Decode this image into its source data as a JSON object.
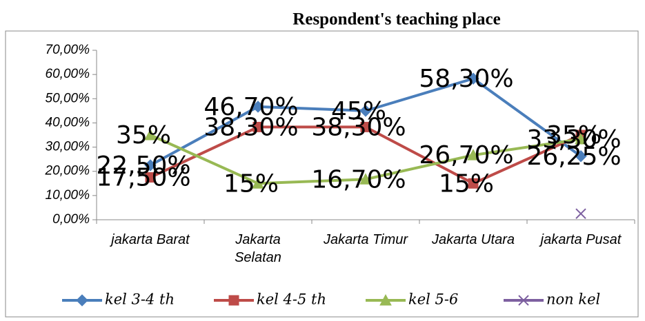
{
  "chart_data": {
    "type": "line",
    "title": "Respondent's teaching place",
    "categories": [
      "jakarta Barat",
      "Jakarta Selatan",
      "Jakarta Timur",
      "Jakarta Utara",
      "jakarta Pusat"
    ],
    "series": [
      {
        "name": "kel 3-4 th",
        "color": "#4a7ebb",
        "marker": "diamond",
        "values": [
          22.5,
          46.7,
          45,
          58.3,
          26.25
        ],
        "value_labels": [
          "22,50%",
          "46,70%",
          "45%",
          "58,30%",
          "26,25%"
        ]
      },
      {
        "name": "kel 4-5 th",
        "color": "#be4b48",
        "marker": "square",
        "values": [
          17.5,
          38.3,
          38.3,
          15,
          35
        ],
        "value_labels": [
          "17,50%",
          "38,30%",
          "38,30%",
          "15%",
          "35%"
        ]
      },
      {
        "name": "kel 5-6",
        "color": "#98b954",
        "marker": "triangle",
        "values": [
          35,
          15,
          16.7,
          26.7,
          33.3
        ],
        "value_labels": [
          "35%",
          "15%",
          "16,70%",
          "26,70%",
          "33,30%"
        ]
      },
      {
        "name": "non kel",
        "color": "#7d60a0",
        "marker": "x",
        "values": [
          null,
          null,
          null,
          null,
          2.5
        ]
      }
    ],
    "ylim": [
      0,
      70
    ],
    "yticks": [
      {
        "value": 0,
        "label": "0,00%"
      },
      {
        "value": 10,
        "label": "10,00%"
      },
      {
        "value": 20,
        "label": "20,00%"
      },
      {
        "value": 30,
        "label": "30,00%"
      },
      {
        "value": 40,
        "label": "40,00%"
      },
      {
        "value": 50,
        "label": "50,00%"
      },
      {
        "value": 60,
        "label": "60,00%"
      },
      {
        "value": 70,
        "label": "70,00%"
      }
    ],
    "grid": false,
    "legend": "bottom"
  }
}
